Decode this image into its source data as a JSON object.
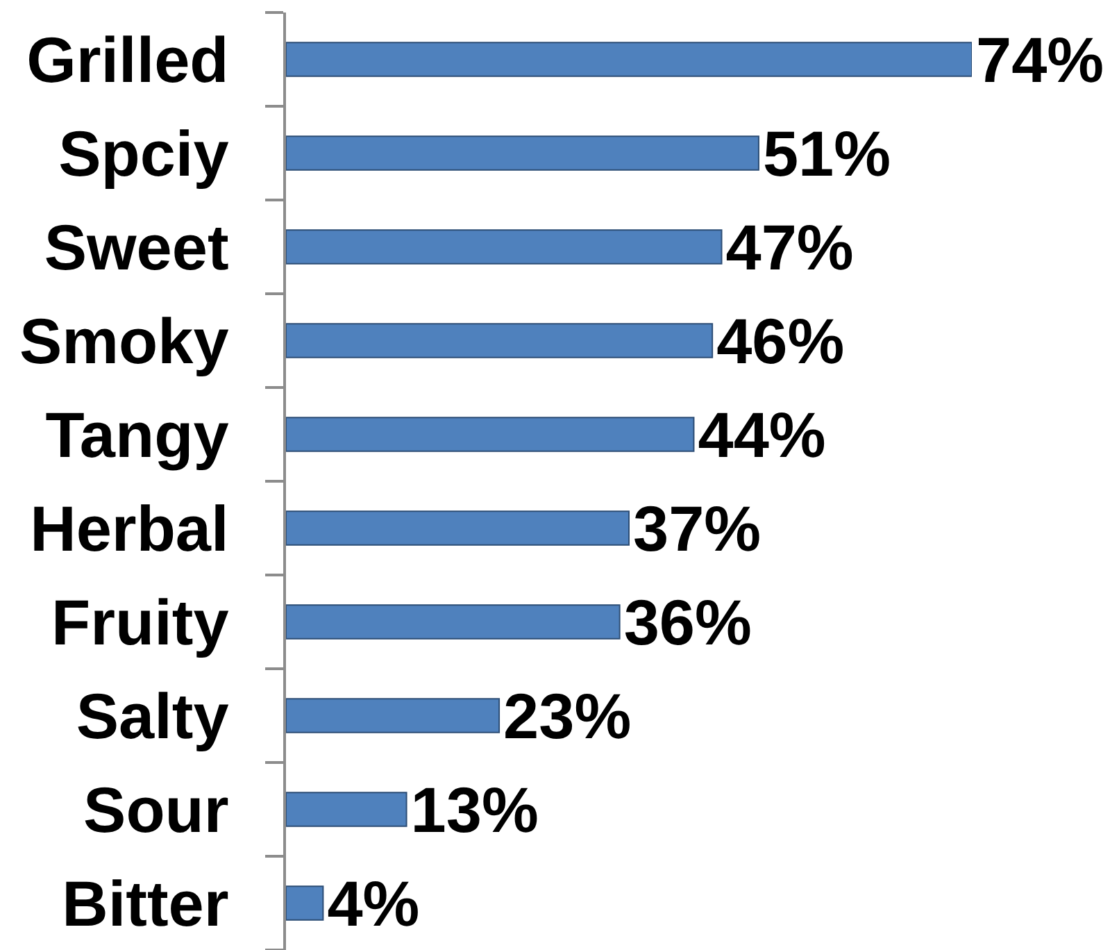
{
  "chart_data": {
    "type": "bar",
    "orientation": "horizontal",
    "tick_labels": "y",
    "categories": [
      "Grilled",
      "Spciy",
      "Sweet",
      "Smoky",
      "Tangy",
      "Herbal",
      "Fruity",
      "Salty",
      "Sour",
      "Bitter"
    ],
    "values": [
      74,
      51,
      47,
      46,
      44,
      37,
      36,
      23,
      13,
      4
    ],
    "value_labels": [
      "74%",
      "51%",
      "47%",
      "46%",
      "44%",
      "37%",
      "36%",
      "23%",
      "13%",
      "4%"
    ],
    "color": "#4f81bd"
  }
}
